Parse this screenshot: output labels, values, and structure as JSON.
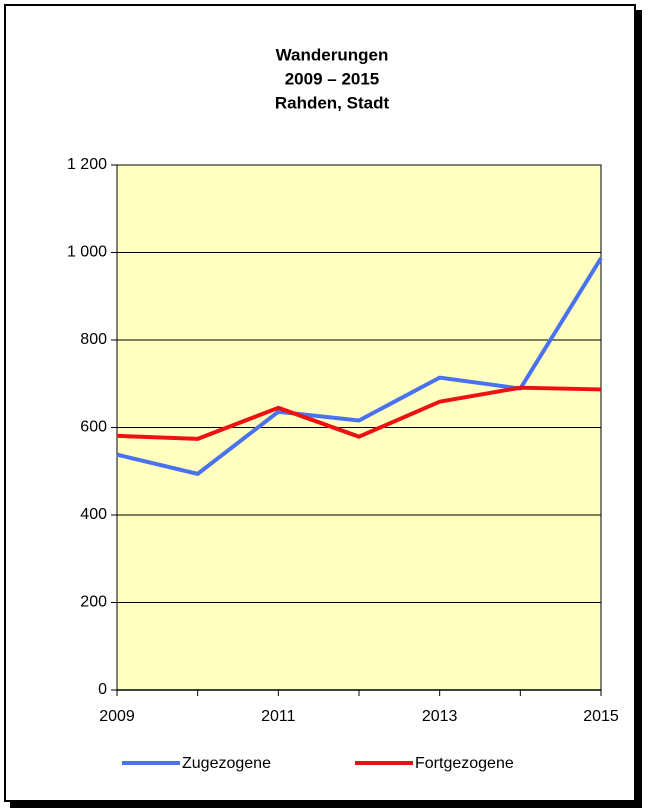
{
  "chart_data": {
    "type": "line",
    "title": [
      "Wanderungen",
      "2009 – 2015",
      "Rahden, Stadt"
    ],
    "x": [
      2009,
      2010,
      2011,
      2012,
      2013,
      2014,
      2015
    ],
    "xlim": [
      2009,
      2015
    ],
    "xticks": [
      2009,
      2011,
      2013,
      2015
    ],
    "ylim": [
      0,
      1200
    ],
    "yticks": [
      0,
      200,
      400,
      600,
      800,
      {
        "value": 1000,
        "label": "1 000"
      },
      {
        "value": 1200,
        "label": "1 200"
      }
    ],
    "grid": true,
    "legend": "bottom",
    "series": [
      {
        "name": "Zugezogene",
        "color": "#4a72ee",
        "values": [
          538,
          494,
          636,
          616,
          714,
          689,
          987
        ]
      },
      {
        "name": "Fortgezogene",
        "color": "#ee1111",
        "values": [
          581,
          574,
          645,
          579,
          659,
          691,
          687
        ]
      }
    ]
  }
}
